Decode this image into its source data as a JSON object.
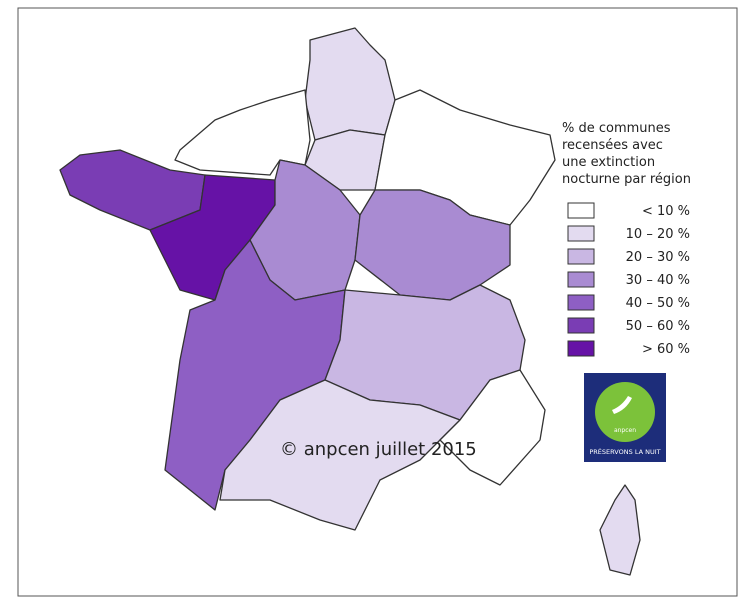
{
  "legend": {
    "title_lines": [
      "% de communes",
      "recensées avec",
      "une extinction",
      "nocturne par région"
    ],
    "items": [
      {
        "label": "< 10 %",
        "color": "#ffffff"
      },
      {
        "label": "10 – 20 %",
        "color": "#e3dbf0"
      },
      {
        "label": "20 – 30 %",
        "color": "#c9b7e3"
      },
      {
        "label": "30 – 40 %",
        "color": "#a98bd2"
      },
      {
        "label": "40 – 50 %",
        "color": "#8e5fc4"
      },
      {
        "label": "50 – 60 %",
        "color": "#7a3db4"
      },
      {
        "label": "> 60 %",
        "color": "#6612a6"
      }
    ]
  },
  "copyright": "© anpcen juillet 2015",
  "logo": {
    "brand": "anpcen",
    "slogan": "PRÉSERVONS LA NUIT"
  }
}
